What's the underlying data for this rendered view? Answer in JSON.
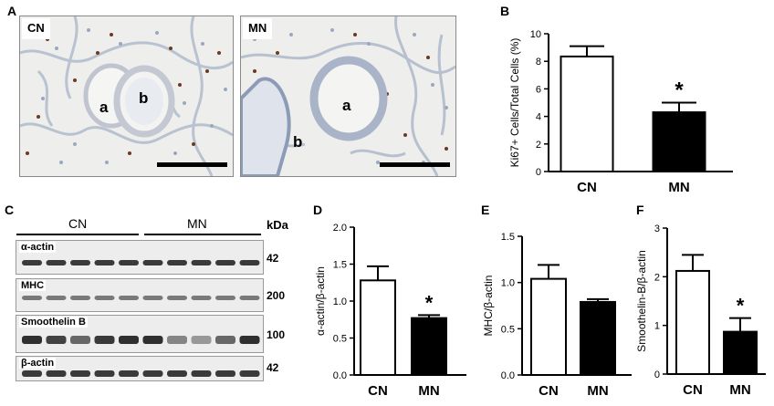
{
  "panels": {
    "a": "A",
    "b": "B",
    "c": "C",
    "d": "D",
    "e": "E",
    "f": "F"
  },
  "micro": {
    "left_tag": "CN",
    "right_tag": "MN",
    "vessel_a": "a",
    "vessel_b": "b"
  },
  "blot": {
    "group1": "CN",
    "group2": "MN",
    "kda_header": "kDa",
    "rows": [
      {
        "name": "α-actin",
        "kda": "42"
      },
      {
        "name": "MHC",
        "kda": "200"
      },
      {
        "name": "Smoothelin B",
        "kda": "100"
      },
      {
        "name": "β-actin",
        "kda": "42"
      }
    ]
  },
  "chart_data": [
    {
      "panel": "B",
      "type": "bar",
      "categories": [
        "CN",
        "MN"
      ],
      "values": [
        8.35,
        4.3
      ],
      "errors": [
        0.75,
        0.7
      ],
      "fills": [
        "#ffffff",
        "#000000"
      ],
      "ylabel": "Ki67+ Cells/Total Cells (%)",
      "ylim": [
        0,
        10
      ],
      "yticks": [
        "0",
        "2",
        "4",
        "6",
        "8",
        "10"
      ],
      "significance": [
        "",
        "*"
      ]
    },
    {
      "panel": "D",
      "type": "bar",
      "categories": [
        "CN",
        "MN"
      ],
      "values": [
        1.28,
        0.77
      ],
      "errors": [
        0.19,
        0.04
      ],
      "fills": [
        "#ffffff",
        "#000000"
      ],
      "ylabel": "α-actin/β-actin",
      "ylim": [
        0,
        2.0
      ],
      "yticks": [
        "0.0",
        "0.5",
        "1.0",
        "1.5",
        "2.0"
      ],
      "significance": [
        "",
        "*"
      ]
    },
    {
      "panel": "E",
      "type": "bar",
      "categories": [
        "CN",
        "MN"
      ],
      "values": [
        1.04,
        0.79
      ],
      "errors": [
        0.15,
        0.03
      ],
      "fills": [
        "#ffffff",
        "#000000"
      ],
      "ylabel": "MHC/β-actin",
      "ylim": [
        0,
        1.5
      ],
      "yticks": [
        "0.0",
        "0.5",
        "1.0",
        "1.5"
      ],
      "significance": [
        "",
        ""
      ]
    },
    {
      "panel": "F",
      "type": "bar",
      "categories": [
        "CN",
        "MN"
      ],
      "values": [
        2.12,
        0.87
      ],
      "errors": [
        0.33,
        0.28
      ],
      "fills": [
        "#ffffff",
        "#000000"
      ],
      "ylabel": "Smoothelin-B/β-actin",
      "ylim": [
        0,
        3
      ],
      "yticks": [
        "0",
        "1",
        "2",
        "3"
      ],
      "significance": [
        "",
        "*"
      ]
    }
  ]
}
